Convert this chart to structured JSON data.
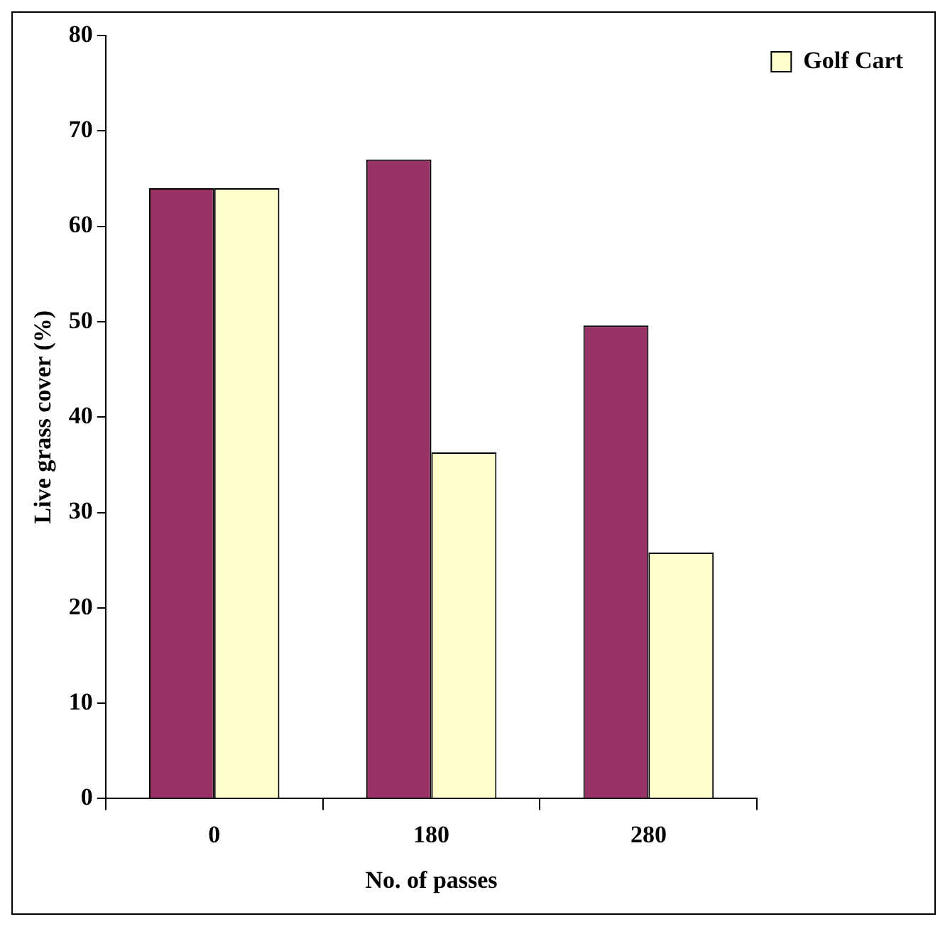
{
  "chart_data": {
    "type": "bar",
    "xlabel": "No. of passes",
    "ylabel": "Live grass cover (%)",
    "categories": [
      "0",
      "180",
      "280"
    ],
    "series": [
      {
        "color": "#993366",
        "values": [
          64,
          67,
          49.6
        ]
      },
      {
        "name": "Golf Cart",
        "color": "#ffffcc",
        "values": [
          64,
          36.3,
          25.8
        ]
      }
    ],
    "ylim": [
      0,
      80
    ],
    "yticks": [
      0,
      10,
      20,
      30,
      40,
      50,
      60,
      70,
      80
    ],
    "grid": false,
    "legend": "right"
  }
}
